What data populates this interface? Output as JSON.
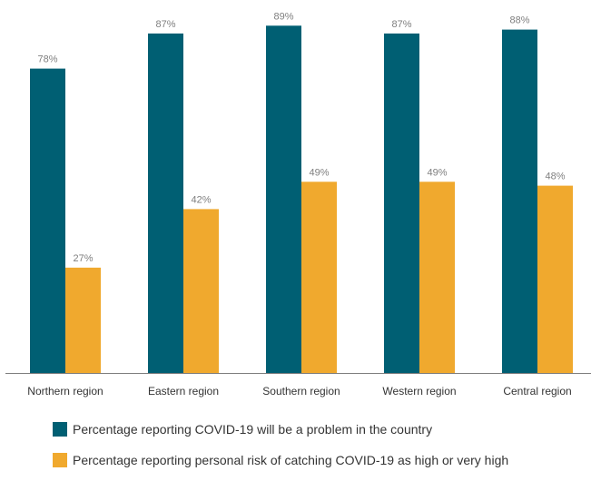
{
  "colors": {
    "series1": "#005f73",
    "series2": "#f0a92e",
    "axis": "#7f7f7f",
    "label": "#7f7f7f"
  },
  "chart_data": {
    "type": "bar",
    "categories": [
      "Northern region",
      "Eastern region",
      "Southern region",
      "Western region",
      "Central region"
    ],
    "series": [
      {
        "name": "Percentage reporting COVID-19 will be a problem in the country",
        "values": [
          78,
          87,
          89,
          87,
          88
        ],
        "labels": [
          "78%",
          "87%",
          "89%",
          "87%",
          "88%"
        ]
      },
      {
        "name": "Percentage reporting personal risk of catching COVID-19 as high or very high",
        "values": [
          27,
          42,
          49,
          49,
          48
        ],
        "labels": [
          "27%",
          "42%",
          "49%",
          "49%",
          "48%"
        ]
      }
    ],
    "legend_position": "bottom",
    "grid": false
  }
}
